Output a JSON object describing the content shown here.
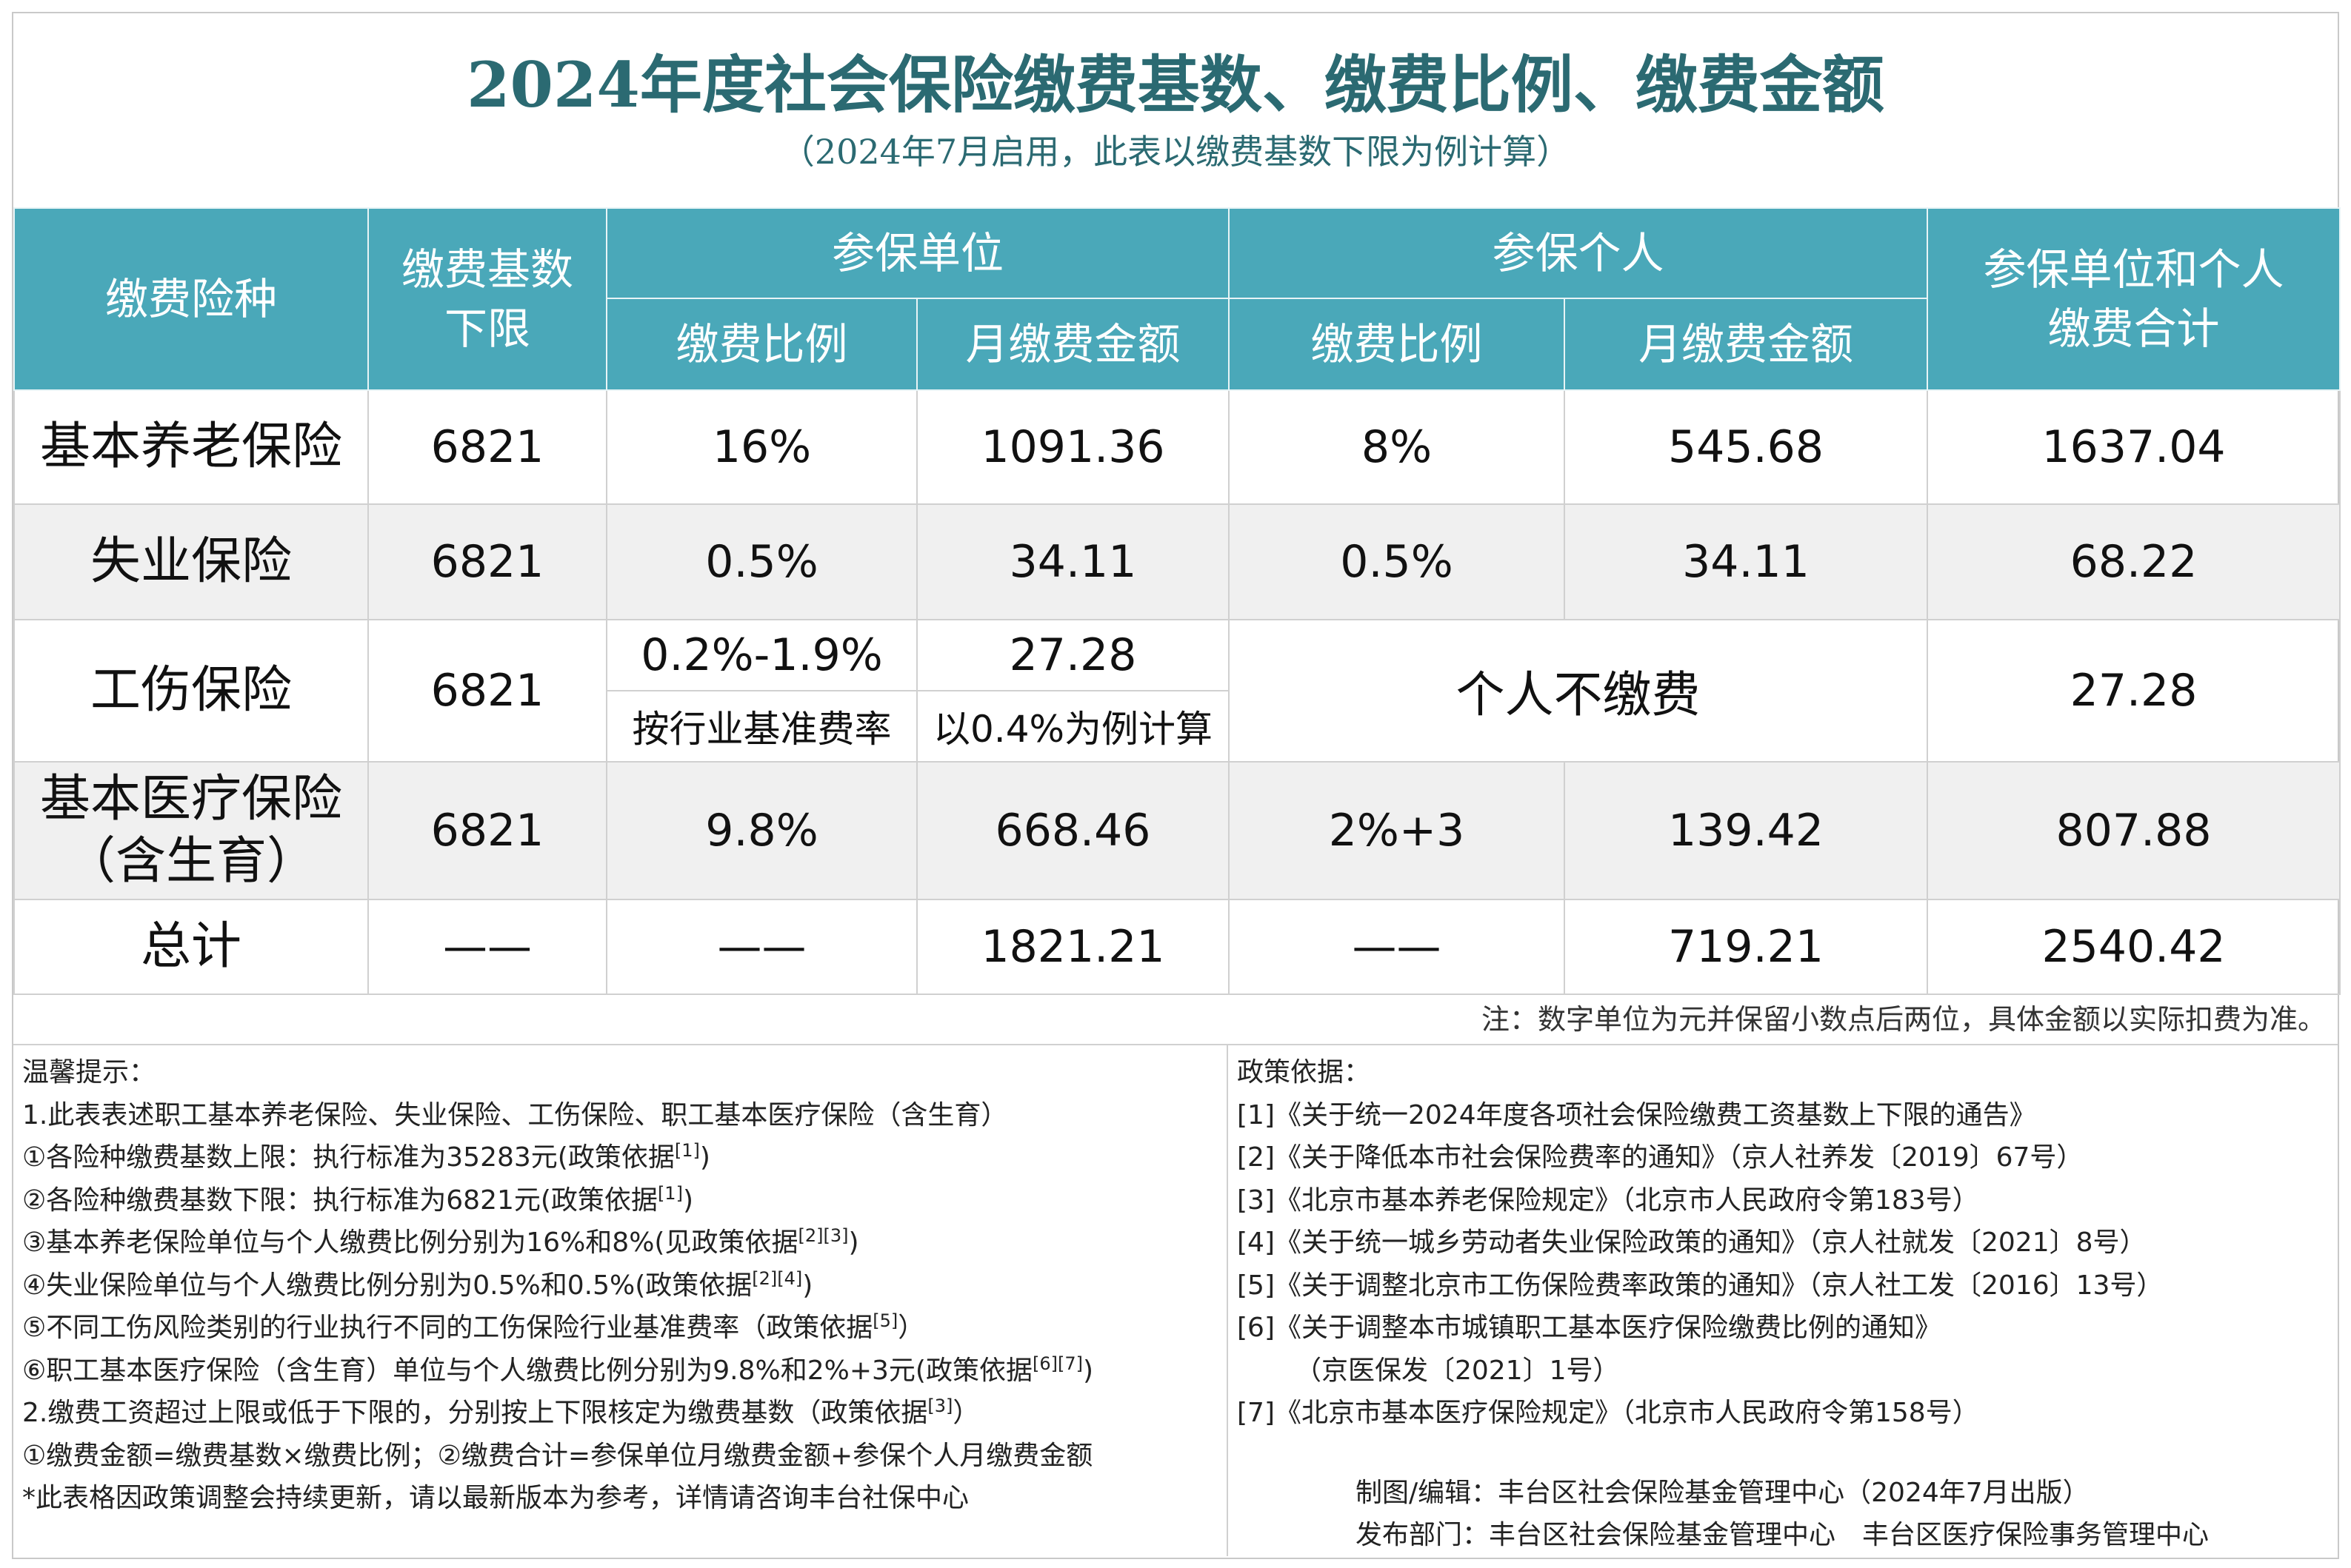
{
  "header": {
    "title": "2024年度社会保险缴费基数、缴费比例、缴费金额",
    "subtitle": "（2024年7月启用，此表以缴费基数下限为例计算）"
  },
  "table": {
    "columns": {
      "type": "缴费险种",
      "base": [
        "缴费基数",
        "下限"
      ],
      "unit": "参保单位",
      "person": "参保个人",
      "total": [
        "参保单位和个人",
        "缴费合计"
      ],
      "rate": "缴费比例",
      "amount": "月缴费金额"
    },
    "rows": [
      {
        "name": [
          "基本养老保险"
        ],
        "base": 6821,
        "unit_rate": "16%",
        "unit_amount": 1091.36,
        "person_rate": "8%",
        "person_amount": 545.68,
        "total": 1637.04
      },
      {
        "name": [
          "失业保险"
        ],
        "base": 6821,
        "unit_rate": "0.5%",
        "unit_amount": 34.11,
        "person_rate": "0.5%",
        "person_amount": 34.11,
        "total": 68.22
      },
      {
        "name": [
          "工伤保险"
        ],
        "base": 6821,
        "unit_rate": "0.2%-1.9%",
        "unit_rate_note": "按行业基准费率",
        "unit_amount": 27.28,
        "unit_amount_note": "以0.4%为例计算",
        "person": "个人不缴费",
        "total": 27.28
      },
      {
        "name": [
          "基本医疗保险",
          "（含生育）"
        ],
        "base": 6821,
        "unit_rate": "9.8%",
        "unit_amount": 668.46,
        "person_rate": "2%+3",
        "person_amount": 139.42,
        "total": 807.88
      },
      {
        "name": [
          "总计"
        ],
        "base": "——",
        "unit_rate": "——",
        "unit_amount": 1821.21,
        "person_rate": "——",
        "person_amount": 719.21,
        "total": 2540.42
      }
    ],
    "note": "注：数字单位为元并保留小数点后两位，具体金额以实际扣费为准。"
  },
  "tips": {
    "title": "温馨提示：",
    "lines": [
      {
        "text": "1.此表表述职工基本养老保险、失业保险、工伤保险、职工基本医疗保险（含生育）"
      },
      {
        "text": "①各险种缴费基数上限：执行标准为35283元(政策依据",
        "sup": "[1]",
        "after": ")"
      },
      {
        "text": "②各险种缴费基数下限：执行标准为6821元(政策依据",
        "sup": "[1]",
        "after": ")"
      },
      {
        "text": "③基本养老保险单位与个人缴费比例分别为16%和8%(见政策依据",
        "sup": "[2][3]",
        "after": ")"
      },
      {
        "text": "④失业保险单位与个人缴费比例分别为0.5%和0.5%(政策依据",
        "sup": "[2][4]",
        "after": ")"
      },
      {
        "text": "⑤不同工伤风险类别的行业执行不同的工伤保险行业基准费率（政策依据",
        "sup": "[5]",
        "after": "）"
      },
      {
        "text": "⑥职工基本医疗保险（含生育）单位与个人缴费比例分别为9.8%和2%+3元(政策依据",
        "sup": "[6][7]",
        "after": ")"
      },
      {
        "text": "2.缴费工资超过上限或低于下限的，分别按上下限核定为缴费基数（政策依据",
        "sup": "[3]",
        "after": "）"
      },
      {
        "text": "①缴费金额=缴费基数×缴费比例；②缴费合计=参保单位月缴费金额+参保个人月缴费金额"
      },
      {
        "text": "*此表格因政策调整会持续更新，请以最新版本为参考，详情请咨询丰台社保中心"
      }
    ]
  },
  "policy": {
    "title": "政策依据：",
    "items": [
      [
        "[1]《关于统一2024年度各项社会保险缴费工资基数上下限的通告》"
      ],
      [
        "[2]《关于降低本市社会保险费率的通知》（京人社养发〔2019〕67号）"
      ],
      [
        "[3]《北京市基本养老保险规定》（北京市人民政府令第183号）"
      ],
      [
        "[4]《关于统一城乡劳动者失业保险政策的通知》（京人社就发〔2021〕8号）"
      ],
      [
        "[5]《关于调整北京市工伤保险费率政策的通知》（京人社工发〔2016〕13号）"
      ],
      [
        "[6]《关于调整本市城镇职工基本医疗保险缴费比例的通知》",
        "（京医保发〔2021〕1号）"
      ],
      [
        "[7]《北京市基本医疗保险规定》（北京市人民政府令第158号）"
      ]
    ],
    "credits": [
      "制图/编辑：丰台区社会保险基金管理中心（2024年7月出版）",
      "发布部门：丰台区社会保险基金管理中心　丰台区医疗保险事务管理中心"
    ]
  }
}
